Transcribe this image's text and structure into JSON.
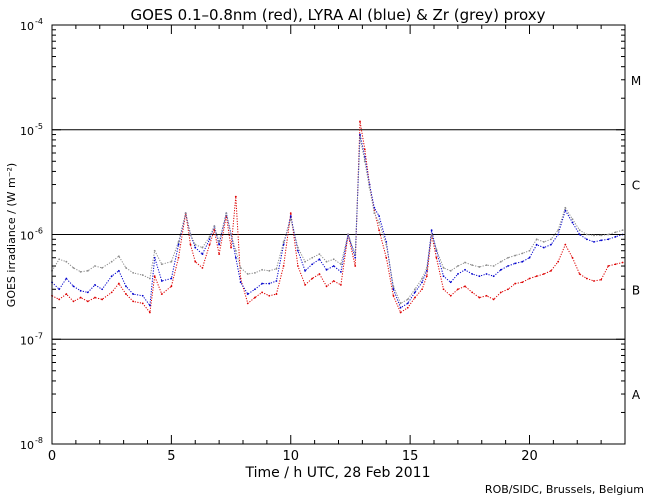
{
  "chart_data": {
    "type": "scatter",
    "title": "GOES 0.1–0.8nm (red), LYRA Al (blue) & Zr (grey) proxy",
    "xlabel": "Time / h UTC, 28 Feb 2011",
    "ylabel": "GOES irradiance / (W m⁻²)",
    "xlim": [
      0,
      24
    ],
    "ylim": [
      1e-08,
      0.0001
    ],
    "yscale": "log",
    "x_ticks": [
      0,
      5,
      10,
      15,
      20
    ],
    "x_tick_labels": [
      "0",
      "5",
      "10",
      "15",
      "20"
    ],
    "y_ticks": [
      1e-08,
      1e-07,
      1e-06,
      1e-05,
      0.0001
    ],
    "y_tick_bases": [
      "10",
      "10",
      "10",
      "10",
      "10"
    ],
    "y_tick_exps": [
      "-8",
      "-7",
      "-6",
      "-5",
      "-4"
    ],
    "reference_lines": [
      1e-07,
      1e-06,
      1e-05
    ],
    "class_labels": [
      {
        "label": "A",
        "y": 3e-08
      },
      {
        "label": "B",
        "y": 3e-07
      },
      {
        "label": "C",
        "y": 3e-06
      },
      {
        "label": "M",
        "y": 3e-05
      }
    ],
    "series": [
      {
        "color": "#dd0000",
        "points": [
          [
            0,
            2.6e-07
          ],
          [
            0.3,
            2.4e-07
          ],
          [
            0.6,
            2.7e-07
          ],
          [
            0.9,
            2.3e-07
          ],
          [
            1.2,
            2.5e-07
          ],
          [
            1.5,
            2.3e-07
          ],
          [
            1.8,
            2.5e-07
          ],
          [
            2.1,
            2.4e-07
          ],
          [
            2.5,
            2.8e-07
          ],
          [
            2.8,
            3.4e-07
          ],
          [
            3.1,
            2.7e-07
          ],
          [
            3.4,
            2.3e-07
          ],
          [
            3.8,
            2.2e-07
          ],
          [
            4.1,
            1.8e-07
          ],
          [
            4.3,
            4e-07
          ],
          [
            4.6,
            2.7e-07
          ],
          [
            5.0,
            3.2e-07
          ],
          [
            5.3,
            6e-07
          ],
          [
            5.6,
            1.6e-06
          ],
          [
            5.8,
            8e-07
          ],
          [
            6.0,
            5.5e-07
          ],
          [
            6.3,
            4.8e-07
          ],
          [
            6.6,
            8e-07
          ],
          [
            6.8,
            1.1e-06
          ],
          [
            7.0,
            6.5e-07
          ],
          [
            7.3,
            1.5e-06
          ],
          [
            7.5,
            7.5e-07
          ],
          [
            7.7,
            2.3e-06
          ],
          [
            7.9,
            3.8e-07
          ],
          [
            8.2,
            2.2e-07
          ],
          [
            8.5,
            2.5e-07
          ],
          [
            8.8,
            2.8e-07
          ],
          [
            9.1,
            2.6e-07
          ],
          [
            9.4,
            2.7e-07
          ],
          [
            9.7,
            5e-07
          ],
          [
            10.0,
            1.6e-06
          ],
          [
            10.3,
            5e-07
          ],
          [
            10.6,
            3.3e-07
          ],
          [
            10.9,
            3.8e-07
          ],
          [
            11.2,
            4.2e-07
          ],
          [
            11.5,
            3.2e-07
          ],
          [
            11.8,
            3.6e-07
          ],
          [
            12.1,
            3.3e-07
          ],
          [
            12.4,
            1e-06
          ],
          [
            12.7,
            5e-07
          ],
          [
            12.9,
            1.2e-05
          ],
          [
            13.1,
            6.5e-06
          ],
          [
            13.3,
            3e-06
          ],
          [
            13.5,
            1.7e-06
          ],
          [
            13.7,
            1.1e-06
          ],
          [
            14.0,
            6e-07
          ],
          [
            14.3,
            2.6e-07
          ],
          [
            14.6,
            1.8e-07
          ],
          [
            14.9,
            2e-07
          ],
          [
            15.2,
            2.5e-07
          ],
          [
            15.5,
            3e-07
          ],
          [
            15.7,
            4e-07
          ],
          [
            15.9,
            1e-06
          ],
          [
            16.1,
            6e-07
          ],
          [
            16.4,
            3e-07
          ],
          [
            16.7,
            2.6e-07
          ],
          [
            17.0,
            3e-07
          ],
          [
            17.3,
            3.2e-07
          ],
          [
            17.6,
            2.8e-07
          ],
          [
            17.9,
            2.5e-07
          ],
          [
            18.2,
            2.6e-07
          ],
          [
            18.5,
            2.4e-07
          ],
          [
            18.8,
            2.8e-07
          ],
          [
            19.1,
            3e-07
          ],
          [
            19.4,
            3.4e-07
          ],
          [
            19.7,
            3.5e-07
          ],
          [
            20.0,
            3.8e-07
          ],
          [
            20.3,
            4e-07
          ],
          [
            20.6,
            4.2e-07
          ],
          [
            20.9,
            4.5e-07
          ],
          [
            21.2,
            5.5e-07
          ],
          [
            21.5,
            8e-07
          ],
          [
            21.8,
            6e-07
          ],
          [
            22.1,
            4.2e-07
          ],
          [
            22.4,
            3.8e-07
          ],
          [
            22.7,
            3.6e-07
          ],
          [
            23.0,
            3.7e-07
          ],
          [
            23.3,
            5e-07
          ],
          [
            23.6,
            5.2e-07
          ],
          [
            23.9,
            5.4e-07
          ]
        ]
      },
      {
        "color": "#0000cc",
        "points": [
          [
            0,
            3.5e-07
          ],
          [
            0.3,
            3e-07
          ],
          [
            0.6,
            3.8e-07
          ],
          [
            0.9,
            3.2e-07
          ],
          [
            1.2,
            2.9e-07
          ],
          [
            1.5,
            2.8e-07
          ],
          [
            1.8,
            3.3e-07
          ],
          [
            2.1,
            3e-07
          ],
          [
            2.5,
            4e-07
          ],
          [
            2.8,
            4.5e-07
          ],
          [
            3.1,
            3.2e-07
          ],
          [
            3.4,
            2.7e-07
          ],
          [
            3.8,
            2.6e-07
          ],
          [
            4.1,
            2.1e-07
          ],
          [
            4.3,
            6e-07
          ],
          [
            4.6,
            3.6e-07
          ],
          [
            5.0,
            3.8e-07
          ],
          [
            5.3,
            8e-07
          ],
          [
            5.6,
            1.6e-06
          ],
          [
            5.8,
            1e-06
          ],
          [
            6.0,
            7.5e-07
          ],
          [
            6.3,
            6.5e-07
          ],
          [
            6.6,
            9e-07
          ],
          [
            6.8,
            1.2e-06
          ],
          [
            7.0,
            8e-07
          ],
          [
            7.3,
            1.6e-06
          ],
          [
            7.5,
            1e-06
          ],
          [
            7.7,
            6e-07
          ],
          [
            7.9,
            3.5e-07
          ],
          [
            8.2,
            2.7e-07
          ],
          [
            8.5,
            3e-07
          ],
          [
            8.8,
            3.4e-07
          ],
          [
            9.1,
            3.4e-07
          ],
          [
            9.4,
            3.6e-07
          ],
          [
            9.7,
            8e-07
          ],
          [
            10.0,
            1.5e-06
          ],
          [
            10.3,
            7e-07
          ],
          [
            10.6,
            4.5e-07
          ],
          [
            10.9,
            5.2e-07
          ],
          [
            11.2,
            5.8e-07
          ],
          [
            11.5,
            4.6e-07
          ],
          [
            11.8,
            5e-07
          ],
          [
            12.1,
            4.4e-07
          ],
          [
            12.4,
            1e-06
          ],
          [
            12.7,
            6e-07
          ],
          [
            12.9,
            9e-06
          ],
          [
            13.1,
            5.5e-06
          ],
          [
            13.3,
            3e-06
          ],
          [
            13.5,
            1.8e-06
          ],
          [
            13.7,
            1.5e-06
          ],
          [
            14.0,
            8.5e-07
          ],
          [
            14.3,
            3e-07
          ],
          [
            14.6,
            2e-07
          ],
          [
            14.9,
            2.2e-07
          ],
          [
            15.2,
            2.8e-07
          ],
          [
            15.5,
            3.5e-07
          ],
          [
            15.7,
            4.5e-07
          ],
          [
            15.9,
            1.1e-06
          ],
          [
            16.1,
            7e-07
          ],
          [
            16.4,
            4e-07
          ],
          [
            16.7,
            3.5e-07
          ],
          [
            17.0,
            4.2e-07
          ],
          [
            17.3,
            4.6e-07
          ],
          [
            17.6,
            4.2e-07
          ],
          [
            17.9,
            4e-07
          ],
          [
            18.2,
            4.2e-07
          ],
          [
            18.5,
            4e-07
          ],
          [
            18.8,
            4.6e-07
          ],
          [
            19.1,
            5e-07
          ],
          [
            19.4,
            5.3e-07
          ],
          [
            19.7,
            5.5e-07
          ],
          [
            20.0,
            6e-07
          ],
          [
            20.3,
            8e-07
          ],
          [
            20.6,
            7.5e-07
          ],
          [
            20.9,
            8e-07
          ],
          [
            21.2,
            1e-06
          ],
          [
            21.5,
            1.7e-06
          ],
          [
            21.8,
            1.3e-06
          ],
          [
            22.1,
            1e-06
          ],
          [
            22.4,
            9e-07
          ],
          [
            22.7,
            8.5e-07
          ],
          [
            23.0,
            8.8e-07
          ],
          [
            23.3,
            9e-07
          ],
          [
            23.6,
            9.5e-07
          ],
          [
            23.9,
            1e-06
          ]
        ]
      },
      {
        "color": "#8c8c8c",
        "points": [
          [
            0,
            4.5e-07
          ],
          [
            0.3,
            5.8e-07
          ],
          [
            0.6,
            5.5e-07
          ],
          [
            0.9,
            4.8e-07
          ],
          [
            1.2,
            4.4e-07
          ],
          [
            1.5,
            4.5e-07
          ],
          [
            1.8,
            5e-07
          ],
          [
            2.1,
            4.8e-07
          ],
          [
            2.5,
            5.5e-07
          ],
          [
            2.8,
            6.2e-07
          ],
          [
            3.1,
            4.8e-07
          ],
          [
            3.4,
            4.3e-07
          ],
          [
            3.8,
            4.1e-07
          ],
          [
            4.1,
            3.8e-07
          ],
          [
            4.3,
            7e-07
          ],
          [
            4.6,
            5.2e-07
          ],
          [
            5.0,
            5.5e-07
          ],
          [
            5.3,
            8.5e-07
          ],
          [
            5.6,
            1.6e-06
          ],
          [
            5.8,
            1e-06
          ],
          [
            6.0,
            8e-07
          ],
          [
            6.3,
            7.5e-07
          ],
          [
            6.6,
            9.5e-07
          ],
          [
            6.8,
            1.2e-06
          ],
          [
            7.0,
            8.5e-07
          ],
          [
            7.3,
            1.6e-06
          ],
          [
            7.5,
            1e-06
          ],
          [
            7.7,
            7e-07
          ],
          [
            7.9,
            4.8e-07
          ],
          [
            8.2,
            4.2e-07
          ],
          [
            8.5,
            4.3e-07
          ],
          [
            8.8,
            4.6e-07
          ],
          [
            9.1,
            4.5e-07
          ],
          [
            9.4,
            4.7e-07
          ],
          [
            9.7,
            8.5e-07
          ],
          [
            10.0,
            1.4e-06
          ],
          [
            10.3,
            7.5e-07
          ],
          [
            10.6,
            5.5e-07
          ],
          [
            10.9,
            6e-07
          ],
          [
            11.2,
            6.5e-07
          ],
          [
            11.5,
            5.5e-07
          ],
          [
            11.8,
            5.8e-07
          ],
          [
            12.1,
            5.2e-07
          ],
          [
            12.4,
            1e-06
          ],
          [
            12.7,
            6.5e-07
          ],
          [
            12.9,
            8.5e-06
          ],
          [
            13.1,
            5e-06
          ],
          [
            13.3,
            2.8e-06
          ],
          [
            13.5,
            1.6e-06
          ],
          [
            13.7,
            1.3e-06
          ],
          [
            14.0,
            8e-07
          ],
          [
            14.3,
            3.2e-07
          ],
          [
            14.6,
            2.2e-07
          ],
          [
            14.9,
            2.4e-07
          ],
          [
            15.2,
            3e-07
          ],
          [
            15.5,
            3.8e-07
          ],
          [
            15.7,
            4.8e-07
          ],
          [
            15.9,
            1e-06
          ],
          [
            16.1,
            7.2e-07
          ],
          [
            16.4,
            4.8e-07
          ],
          [
            16.7,
            4.5e-07
          ],
          [
            17.0,
            5e-07
          ],
          [
            17.3,
            5.4e-07
          ],
          [
            17.6,
            5.1e-07
          ],
          [
            17.9,
            4.9e-07
          ],
          [
            18.2,
            5.1e-07
          ],
          [
            18.5,
            5e-07
          ],
          [
            18.8,
            5.5e-07
          ],
          [
            19.1,
            6e-07
          ],
          [
            19.4,
            6.3e-07
          ],
          [
            19.7,
            6.6e-07
          ],
          [
            20.0,
            7e-07
          ],
          [
            20.3,
            9e-07
          ],
          [
            20.6,
            8.5e-07
          ],
          [
            20.9,
            9e-07
          ],
          [
            21.2,
            1.1e-06
          ],
          [
            21.5,
            1.8e-06
          ],
          [
            21.8,
            1.4e-06
          ],
          [
            22.1,
            1.1e-06
          ],
          [
            22.4,
            1e-06
          ],
          [
            22.7,
            9.8e-07
          ],
          [
            23.0,
            9.8e-07
          ],
          [
            23.3,
            1e-06
          ],
          [
            23.6,
            1.05e-06
          ],
          [
            23.9,
            1.1e-06
          ]
        ]
      }
    ]
  },
  "credit": "ROB/SIDC, Brussels, Belgium"
}
